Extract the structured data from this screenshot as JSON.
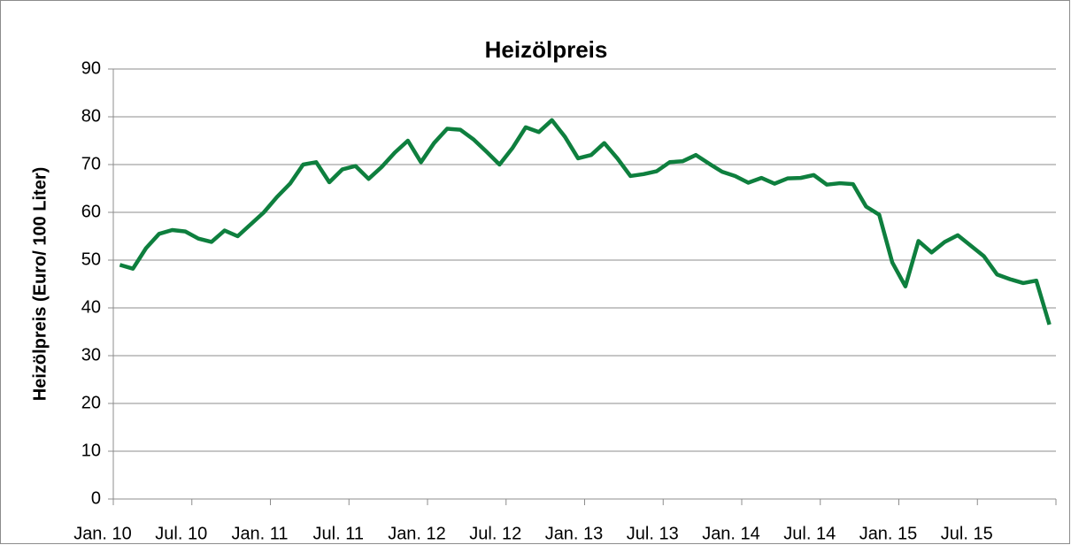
{
  "chart_data": {
    "type": "line",
    "title": "Heizölpreis",
    "y_label": "Heizölpreis (Euro/ 100 Liter)",
    "categories": [
      "Jan. 10",
      null,
      null,
      null,
      null,
      null,
      "Jul. 10",
      null,
      null,
      null,
      null,
      null,
      "Jan. 11",
      null,
      null,
      null,
      null,
      null,
      "Jul. 11",
      null,
      null,
      null,
      null,
      null,
      "Jan. 12",
      null,
      null,
      null,
      null,
      null,
      "Jul. 12",
      null,
      null,
      null,
      null,
      null,
      "Jan. 13",
      null,
      null,
      null,
      null,
      null,
      "Jul. 13",
      null,
      null,
      null,
      null,
      null,
      "Jan. 14",
      null,
      null,
      null,
      null,
      null,
      "Jul. 14",
      null,
      null,
      null,
      null,
      null,
      "Jan. 15",
      null,
      null,
      null,
      null,
      null,
      "Jul. 15",
      null,
      null,
      null,
      null,
      null
    ],
    "series": [
      {
        "name": "Heizölpreis",
        "color": "#0e7f3e",
        "values": [
          49,
          48.2,
          52.5,
          55.5,
          56.3,
          56,
          54.5,
          53.8,
          56.2,
          55,
          57.5,
          60,
          63.2,
          66,
          70,
          70.5,
          66.3,
          69,
          69.7,
          67,
          69.5,
          72.5,
          75,
          70.5,
          74.5,
          77.5,
          77.3,
          75.3,
          72.7,
          70,
          73.5,
          77.8,
          76.8,
          79.3,
          75.8,
          71.3,
          72,
          74.5,
          71.3,
          67.6,
          68,
          68.6,
          70.5,
          70.7,
          72,
          70.2,
          68.5,
          67.6,
          66.2,
          67.2,
          66,
          67.1,
          67.2,
          67.8,
          65.8,
          66.1,
          65.9,
          61.2,
          59.5,
          49.5,
          44.5,
          54,
          51.6,
          53.8,
          55.2,
          53,
          50.8,
          47,
          46,
          45.2,
          45.7,
          36.5
        ]
      }
    ],
    "ylim": [
      0,
      90
    ],
    "yticks": [
      0,
      10,
      20,
      30,
      40,
      50,
      60,
      70,
      80,
      90
    ],
    "grid": true
  }
}
